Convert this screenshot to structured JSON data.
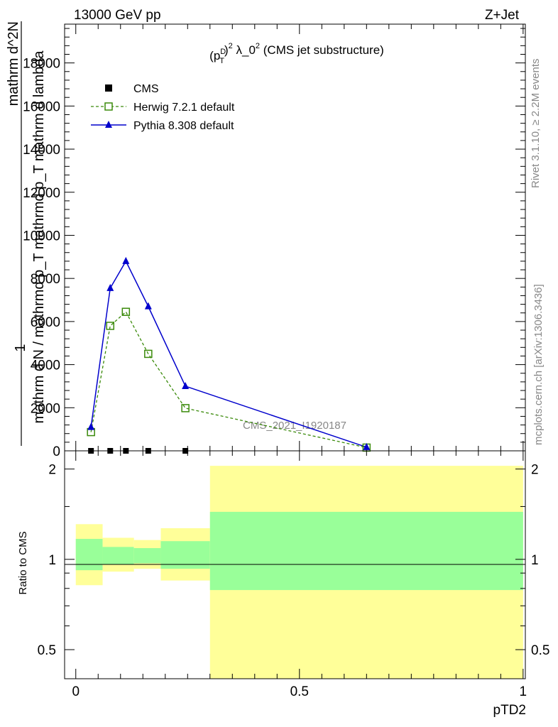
{
  "header": {
    "left": "13000 GeV pp",
    "right": "Z+Jet"
  },
  "side_labels": {
    "top": "Rivet 3.1.10, ≥ 2.2M events",
    "bottom": "mcplots.cern.ch [arXiv:1306.3436]"
  },
  "watermark": "CMS_2021_I1920187",
  "chart_data": [
    {
      "type": "line",
      "title": "(p_T^D)^2 λ_0^2 (CMS jet substructure)",
      "ylabel_lines": [
        "1",
        "mathrm d N / mathrmd p_T mathrmd p_T mathrm d lambda",
        "mathrm d^2N"
      ],
      "xlim": [
        -0.025,
        1.005
      ],
      "ylim": [
        0,
        19800
      ],
      "yticks": [
        0,
        2000,
        4000,
        6000,
        8000,
        10000,
        12000,
        14000,
        16000,
        18000
      ],
      "ytick_labels": [
        "0",
        "2000",
        "4000",
        "6000",
        "8000",
        "10000",
        "12000",
        "14000",
        "16000",
        "18000"
      ],
      "legend_position": "top-left",
      "series": [
        {
          "name": "CMS",
          "style": "square-marker",
          "color": "#000000",
          "x": [
            0.034,
            0.077,
            0.112,
            0.162,
            0.245
          ],
          "y": [
            0,
            0,
            0,
            0,
            0
          ]
        },
        {
          "name": "Herwig 7.2.1 default",
          "style": "dashed-open-square",
          "color": "#3a8a0a",
          "x": [
            0.034,
            0.077,
            0.112,
            0.162,
            0.245,
            0.65
          ],
          "y": [
            870,
            5800,
            6450,
            4500,
            1980,
            150
          ]
        },
        {
          "name": "Pythia 8.308 default",
          "style": "solid-triangle",
          "color": "#0000cc",
          "x": [
            0.034,
            0.077,
            0.112,
            0.162,
            0.245,
            0.65
          ],
          "y": [
            1100,
            7550,
            8800,
            6700,
            3000,
            170
          ]
        }
      ]
    },
    {
      "type": "area",
      "ylabel": "Ratio to CMS",
      "xlabel": "pTD2",
      "xlim": [
        -0.025,
        1.005
      ],
      "ylim": [
        0.4,
        2.3
      ],
      "xticks": [
        0,
        0.5,
        1
      ],
      "xtick_labels": [
        "0",
        "0.5",
        "1"
      ],
      "yticks": [
        0.5,
        1,
        2
      ],
      "ytick_labels": [
        "0.5",
        "1",
        "2"
      ],
      "reference_line": 1,
      "bands": [
        {
          "x0": 0.0,
          "x1": 0.06,
          "outer": [
            0.82,
            1.31
          ],
          "inner": [
            0.92,
            1.17
          ]
        },
        {
          "x0": 0.06,
          "x1": 0.13,
          "outer": [
            0.91,
            1.18
          ],
          "inner": [
            0.96,
            1.1
          ]
        },
        {
          "x0": 0.13,
          "x1": 0.19,
          "outer": [
            0.93,
            1.16
          ],
          "inner": [
            0.97,
            1.09
          ]
        },
        {
          "x0": 0.19,
          "x1": 0.3,
          "outer": [
            0.85,
            1.27
          ],
          "inner": [
            0.93,
            1.15
          ]
        },
        {
          "x0": 0.3,
          "x1": 1.0,
          "outer": [
            0.4,
            2.05
          ],
          "inner": [
            0.79,
            1.44
          ]
        }
      ],
      "band_colors": {
        "outer": "#ffff99",
        "inner": "#99ff99"
      }
    }
  ]
}
